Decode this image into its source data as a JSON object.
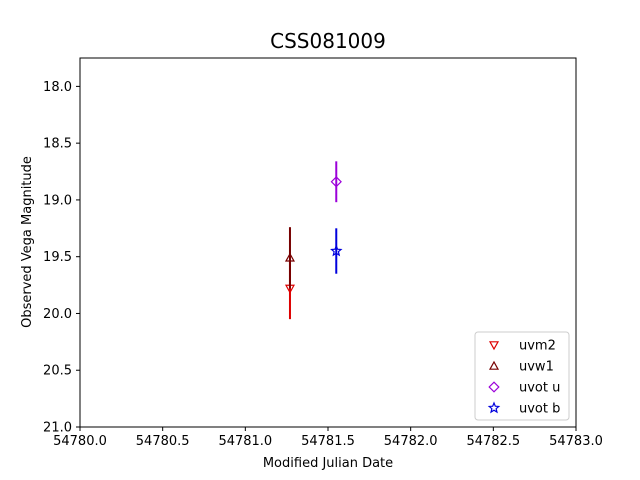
{
  "chart_data": {
    "type": "scatter",
    "title": "CSS081009",
    "xlabel": "Modified Julian Date",
    "ylabel": "Observed Vega Magnitude",
    "xlim": [
      54780.0,
      54783.0
    ],
    "ylim": [
      21.0,
      17.75
    ],
    "y_inverted": true,
    "xticks": [
      "54780.0",
      "54780.5",
      "54781.0",
      "54781.5",
      "54782.0",
      "54782.5",
      "54783.0"
    ],
    "xtick_values": [
      54780.0,
      54780.5,
      54781.0,
      54781.5,
      54782.0,
      54782.5,
      54783.0
    ],
    "yticks": [
      "18.0",
      "18.5",
      "19.0",
      "19.5",
      "20.0",
      "20.5",
      "21.0"
    ],
    "ytick_values": [
      18.0,
      18.5,
      19.0,
      19.5,
      20.0,
      20.5,
      21.0
    ],
    "grid": false,
    "legend_position": "lower-right",
    "series": [
      {
        "name": "uvm2",
        "marker": "triangle-down",
        "color": "#dd0000",
        "x": [
          54781.27
        ],
        "y": [
          19.78
        ],
        "yerr": [
          0.27
        ]
      },
      {
        "name": "uvw1",
        "marker": "triangle-up",
        "color": "#770000",
        "x": [
          54781.27
        ],
        "y": [
          19.51
        ],
        "yerr": [
          0.27
        ]
      },
      {
        "name": "uvot u",
        "marker": "diamond",
        "color": "#9b00d9",
        "x": [
          54781.55
        ],
        "y": [
          18.84
        ],
        "yerr": [
          0.18
        ]
      },
      {
        "name": "uvot b",
        "marker": "star",
        "color": "#0000dd",
        "x": [
          54781.55
        ],
        "y": [
          19.45
        ],
        "yerr": [
          0.2
        ]
      }
    ]
  }
}
